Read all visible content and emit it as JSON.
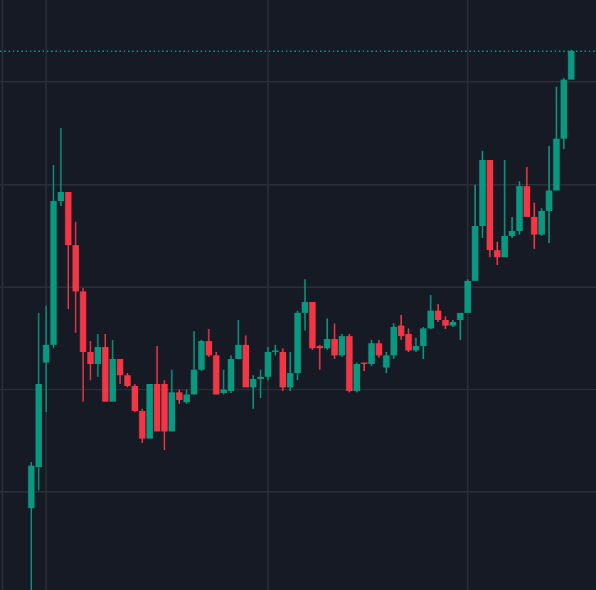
{
  "chart_data": {
    "type": "candlestick",
    "x": [
      0,
      1,
      2,
      3,
      4,
      5,
      6,
      7,
      8,
      9,
      10,
      11,
      12,
      13,
      14,
      15,
      16,
      17,
      18,
      19,
      20,
      21,
      22,
      23,
      24,
      25,
      26,
      27,
      28,
      29,
      30,
      31,
      32,
      33,
      34,
      35,
      36,
      37,
      38,
      39,
      40,
      41,
      42,
      43,
      44,
      45,
      46,
      47,
      48,
      49,
      50,
      51,
      52,
      53,
      54,
      55,
      56,
      57,
      58,
      59,
      60,
      61,
      62,
      63,
      64,
      65,
      66,
      67,
      68,
      69,
      70,
      71,
      72,
      73
    ],
    "open": [
      115,
      173,
      320,
      345,
      547,
      560,
      485,
      420,
      335,
      318,
      342,
      265,
      325,
      302,
      287,
      252,
      213,
      290,
      290,
      223,
      278,
      264,
      275,
      310,
      350,
      330,
      277,
      280,
      325,
      345,
      285,
      297,
      300,
      335,
      335,
      285,
      305,
      390,
      405,
      343,
      340,
      353,
      330,
      357,
      280,
      320,
      318,
      347,
      313,
      330,
      372,
      360,
      337,
      343,
      368,
      393,
      380,
      372,
      380,
      390,
      435,
      512,
      605,
      478,
      468,
      498,
      505,
      568,
      525,
      500,
      533,
      562,
      635,
      718
    ],
    "high": [
      180,
      390,
      400,
      598,
      650,
      560,
      518,
      425,
      350,
      360,
      360,
      352,
      325,
      305,
      290,
      255,
      290,
      343,
      295,
      310,
      282,
      282,
      364,
      352,
      367,
      335,
      310,
      330,
      380,
      358,
      302,
      310,
      342,
      345,
      340,
      335,
      393,
      437,
      405,
      345,
      382,
      375,
      360,
      360,
      320,
      320,
      352,
      352,
      335,
      375,
      387,
      368,
      355,
      370,
      415,
      402,
      385,
      380,
      390,
      437,
      570,
      618,
      605,
      490,
      605,
      525,
      575,
      595,
      545,
      537,
      625,
      708,
      720,
      760
    ],
    "low": [
      0,
      140,
      250,
      340,
      540,
      395,
      362,
      265,
      295,
      300,
      265,
      265,
      290,
      285,
      250,
      207,
      213,
      223,
      197,
      223,
      262,
      262,
      275,
      308,
      328,
      275,
      275,
      277,
      325,
      285,
      255,
      270,
      295,
      330,
      280,
      280,
      295,
      365,
      338,
      310,
      338,
      325,
      328,
      278,
      278,
      308,
      315,
      327,
      305,
      325,
      352,
      335,
      335,
      325,
      367,
      377,
      367,
      370,
      352,
      390,
      435,
      495,
      468,
      457,
      468,
      495,
      500,
      525,
      480,
      498,
      488,
      562,
      620,
      718
    ],
    "close": [
      175,
      290,
      345,
      547,
      560,
      485,
      420,
      335,
      318,
      342,
      265,
      325,
      302,
      287,
      252,
      213,
      290,
      223,
      223,
      278,
      267,
      275,
      310,
      350,
      330,
      275,
      282,
      325,
      345,
      285,
      297,
      300,
      335,
      337,
      285,
      305,
      390,
      405,
      340,
      340,
      353,
      330,
      357,
      280,
      318,
      318,
      347,
      330,
      330,
      370,
      357,
      337,
      343,
      368,
      393,
      380,
      372,
      377,
      390,
      435,
      512,
      605,
      478,
      468,
      498,
      505,
      568,
      525,
      500,
      533,
      562,
      635,
      718,
      758
    ],
    "up_color": "#089981",
    "down_color": "#f23645",
    "last_price": 758,
    "xlim": [
      -4.23,
      76.35
    ],
    "xticks": [
      2,
      32,
      59
    ],
    "ylim": [
      0,
      830
    ],
    "yticks": [
      138,
      282,
      426,
      570,
      715
    ],
    "grid": true
  }
}
